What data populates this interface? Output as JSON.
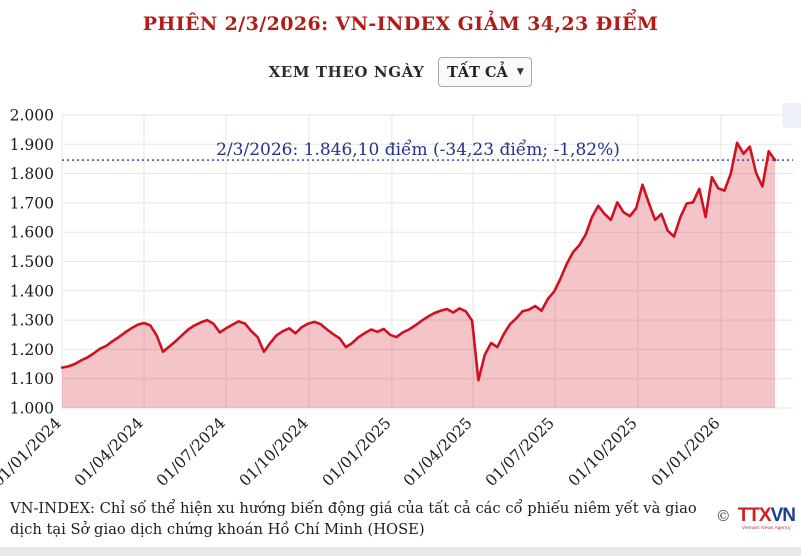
{
  "header": {
    "title": "PHIÊN 2/3/2026: VN-INDEX GIẢM 34,23 ĐIỂM"
  },
  "controls": {
    "view_label": "XEM THEO NGÀY",
    "dropdown_value": "TẤT CẢ",
    "dropdown_icon": "▼"
  },
  "annotation": {
    "text": "2/3/2026: 1.846,10 điểm (-34,23 điểm; -1,82%)",
    "value": 1846.1
  },
  "chart_data": {
    "type": "area",
    "title": "VN-INDEX",
    "xlabel": "",
    "ylabel": "",
    "ylim": [
      1000,
      2000
    ],
    "grid": true,
    "legend": false,
    "line_color": "#cf1222",
    "fill_color": "rgba(207,18,34,0.25)",
    "grid_color": "#e5e5e5",
    "annotation_color": "#26379b",
    "y_tick_values": [
      2000,
      1900,
      1800,
      1700,
      1600,
      1500,
      1400,
      1300,
      1200,
      1100,
      1000
    ],
    "y_tick_labels": [
      "2.000",
      "1.900",
      "1.800",
      "1.700",
      "1.600",
      "1.500",
      "1.400",
      "1.300",
      "1.200",
      "1.100",
      "1.000"
    ],
    "x_tick_labels": [
      "01/01/2024",
      "01/04/2024",
      "01/07/2024",
      "01/10/2024",
      "01/01/2025",
      "01/04/2025",
      "01/07/2025",
      "01/10/2025",
      "01/01/2026"
    ],
    "x_tick_days": [
      0,
      91,
      182,
      274,
      366,
      456,
      547,
      639,
      731
    ],
    "total_days": 791,
    "series": [
      {
        "name": "VN-INDEX",
        "unit": "điểm",
        "cadence": "weekly",
        "start_date": "01/01/2024",
        "points_weekly": [
          1138,
          1142,
          1150,
          1162,
          1172,
          1186,
          1202,
          1212,
          1228,
          1242,
          1258,
          1272,
          1284,
          1290,
          1282,
          1248,
          1192,
          1210,
          1228,
          1248,
          1268,
          1282,
          1292,
          1300,
          1288,
          1258,
          1272,
          1284,
          1296,
          1288,
          1262,
          1242,
          1192,
          1222,
          1248,
          1262,
          1272,
          1255,
          1276,
          1288,
          1294,
          1286,
          1268,
          1252,
          1238,
          1208,
          1222,
          1242,
          1256,
          1268,
          1260,
          1270,
          1250,
          1242,
          1258,
          1268,
          1282,
          1298,
          1312,
          1324,
          1332,
          1338,
          1326,
          1340,
          1330,
          1298,
          1095,
          1182,
          1222,
          1208,
          1252,
          1286,
          1306,
          1330,
          1336,
          1348,
          1332,
          1372,
          1398,
          1442,
          1492,
          1532,
          1556,
          1592,
          1652,
          1690,
          1662,
          1642,
          1702,
          1668,
          1655,
          1682,
          1762,
          1700,
          1642,
          1662,
          1605,
          1585,
          1652,
          1698,
          1702,
          1748,
          1652,
          1788,
          1750,
          1742,
          1800,
          1905,
          1868,
          1892,
          1802,
          1756,
          1876,
          1846
        ]
      }
    ],
    "last_point": {
      "date": "2/3/2026",
      "value": "1.846,10",
      "change": "-34,23",
      "change_pct": "-1,82%"
    }
  },
  "footer": {
    "description": "VN-INDEX: Chỉ số thể hiện xu hướng biến động giá của tất cả các cổ phiếu niêm yết và giao dịch tại Sở giao dịch chứng khoán Hồ Chí Minh (HOSE)",
    "copyright": "©",
    "logo_red": "TTX",
    "logo_blue": "VN",
    "logo_subtext": "Vietnam News Agency"
  }
}
